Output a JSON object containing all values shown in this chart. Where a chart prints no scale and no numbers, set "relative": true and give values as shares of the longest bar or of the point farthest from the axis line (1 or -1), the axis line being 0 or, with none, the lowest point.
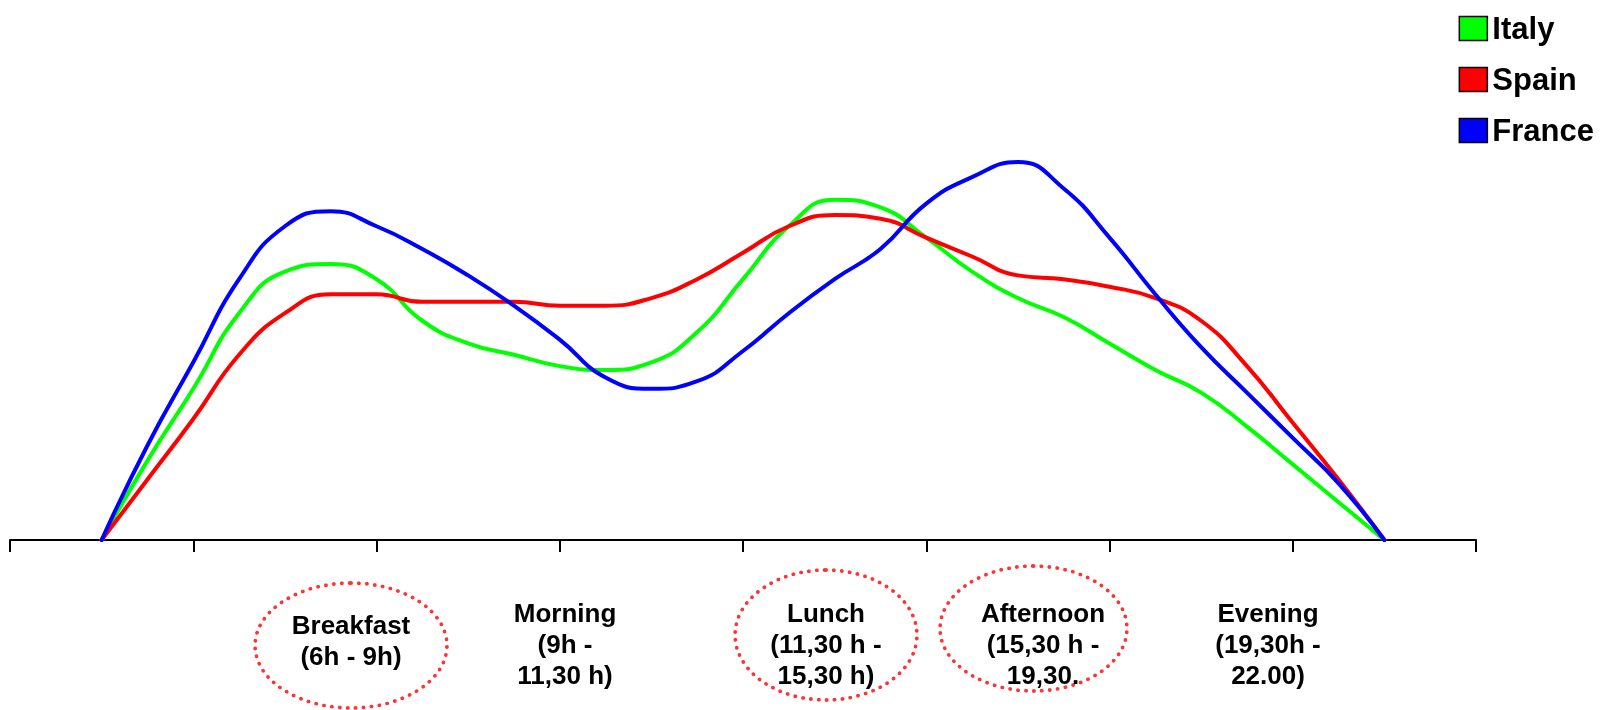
{
  "chart_data": {
    "type": "line",
    "relative": true,
    "categories": [
      null,
      null,
      null,
      null,
      null,
      null,
      null,
      null,
      null,
      null,
      null,
      null,
      null,
      null,
      null,
      null,
      null,
      null,
      null,
      null,
      null,
      null,
      null,
      null,
      null,
      null,
      null,
      null,
      null,
      null,
      null,
      null,
      null
    ],
    "series": [
      {
        "name": "Italy",
        "color": "#00ff00",
        "values": [
          null,
          null,
          0,
          0.21,
          0.4,
          0.6,
          0.71,
          0.73,
          0.69,
          0.58,
          0.52,
          0.49,
          0.46,
          0.45,
          0.47,
          0.55,
          0.69,
          0.83,
          0.9,
          0.88,
          0.8,
          0.71,
          0.64,
          0.59,
          0.52,
          0.45,
          0.39,
          0.3,
          0.2,
          0.1,
          0,
          null,
          null
        ]
      },
      {
        "name": "Spain",
        "color": "#ff0000",
        "values": [
          null,
          null,
          0,
          0.16,
          0.32,
          0.49,
          0.6,
          0.65,
          0.65,
          0.63,
          0.63,
          0.63,
          0.62,
          0.62,
          0.64,
          0.69,
          0.76,
          0.83,
          0.86,
          0.85,
          0.8,
          0.75,
          0.7,
          0.69,
          0.67,
          0.64,
          0.58,
          0.46,
          0.31,
          0.16,
          0,
          null,
          null
        ]
      },
      {
        "name": "France",
        "color": "#0000ff",
        "values": [
          null,
          null,
          0,
          0.25,
          0.47,
          0.69,
          0.83,
          0.87,
          0.83,
          0.77,
          0.7,
          0.62,
          0.53,
          0.43,
          0.4,
          0.42,
          0.5,
          0.6,
          0.69,
          0.77,
          0.89,
          0.96,
          1,
          0.93,
          0.8,
          0.65,
          0.51,
          0.39,
          0.27,
          0.15,
          0,
          null,
          null
        ]
      }
    ],
    "annotations": [
      "Breakfast\n(6h - 9h)",
      "Morning\n(9h -\n11,30 h)",
      "Lunch\n(11,30 h -\n15,30 h)",
      "Afternoon\n(15,30 h -\n19,30.",
      "Evening\n(19,30h -\n22.00)"
    ],
    "legend": "top right",
    "marker": "none",
    "line_style": "solid",
    "grid": false
  }
}
